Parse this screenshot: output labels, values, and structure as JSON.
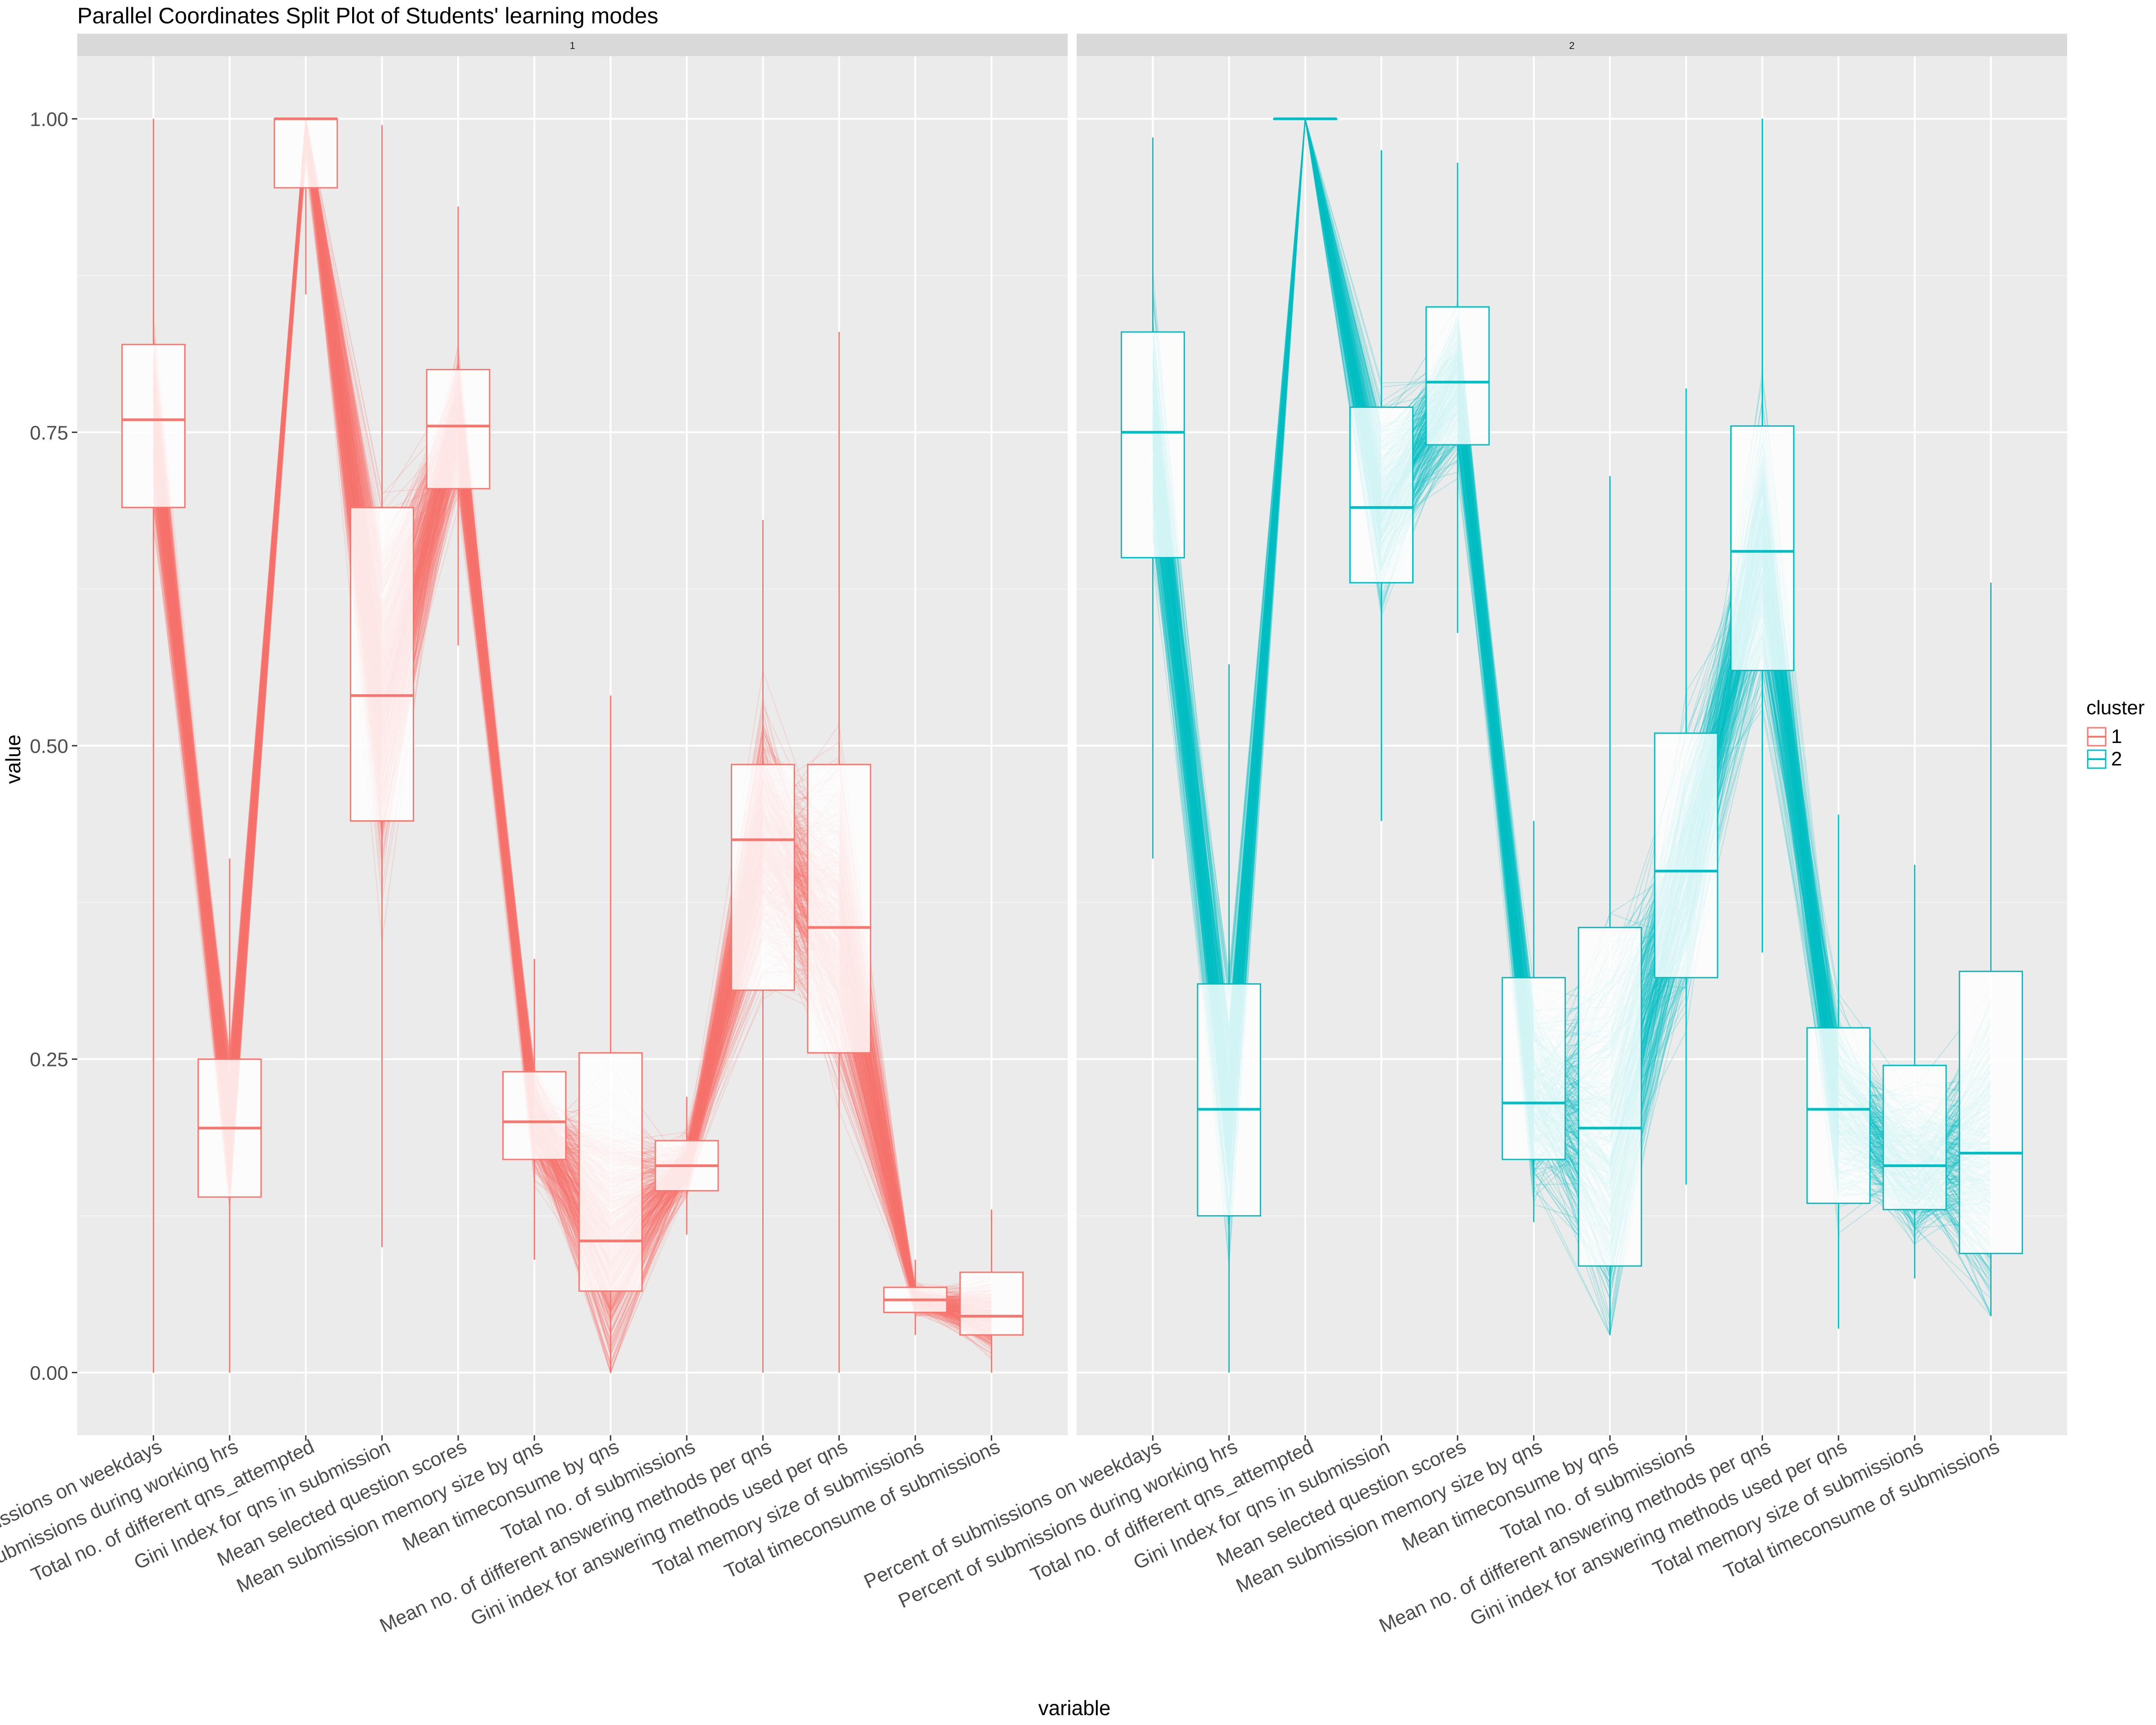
{
  "chart_data": {
    "type": "parallel-coordinates-split",
    "title": "Parallel Coordinates Split Plot of Students' learning modes",
    "xlabel": "variable",
    "ylabel": "value",
    "ylim": [
      -0.05,
      1.05
    ],
    "yticks": [
      0.0,
      0.25,
      0.5,
      0.75,
      1.0
    ],
    "ytick_labels": [
      "0.00",
      "0.25",
      "0.50",
      "0.75",
      "1.00"
    ],
    "grid": true,
    "legend": {
      "title": "cluster",
      "placement": "right",
      "entries": [
        "1",
        "2"
      ]
    },
    "variables": [
      "Percent of submissions on weekdays",
      "Percent of submissions during working hrs",
      "Total no. of different qns_attempted",
      "Gini Index for qns in submission",
      "Mean selected question scores",
      "Mean submission memory size by qns",
      "Mean timeconsume by qns",
      "Total no. of submissions",
      "Mean no. of different answering methods per qns",
      "Gini index for answering methods used per qns",
      "Total memory size of submissions",
      "Total timeconsume of submissions"
    ],
    "panels": [
      {
        "strip": "1",
        "color": "#F8766D",
        "boxes": [
          {
            "q1": 0.69,
            "median": 0.76,
            "q3": 0.82,
            "lower": 0.0,
            "upper": 1.0
          },
          {
            "q1": 0.14,
            "median": 0.195,
            "q3": 0.25,
            "lower": 0.0,
            "upper": 0.41
          },
          {
            "q1": 0.945,
            "median": 1.0,
            "q3": 1.0,
            "lower": 0.86,
            "upper": 1.0
          },
          {
            "q1": 0.44,
            "median": 0.54,
            "q3": 0.69,
            "lower": 0.1,
            "upper": 0.995
          },
          {
            "q1": 0.705,
            "median": 0.755,
            "q3": 0.8,
            "lower": 0.58,
            "upper": 0.93
          },
          {
            "q1": 0.17,
            "median": 0.2,
            "q3": 0.24,
            "lower": 0.09,
            "upper": 0.33
          },
          {
            "q1": 0.065,
            "median": 0.105,
            "q3": 0.255,
            "lower": 0.0,
            "upper": 0.54
          },
          {
            "q1": 0.145,
            "median": 0.165,
            "q3": 0.185,
            "lower": 0.11,
            "upper": 0.22
          },
          {
            "q1": 0.305,
            "median": 0.425,
            "q3": 0.485,
            "lower": 0.0,
            "upper": 0.68
          },
          {
            "q1": 0.255,
            "median": 0.355,
            "q3": 0.485,
            "lower": 0.0,
            "upper": 0.83
          },
          {
            "q1": 0.048,
            "median": 0.058,
            "q3": 0.068,
            "lower": 0.03,
            "upper": 0.09
          },
          {
            "q1": 0.03,
            "median": 0.045,
            "q3": 0.08,
            "lower": 0.0,
            "upper": 0.13
          }
        ]
      },
      {
        "strip": "2",
        "color": "#00BFC4",
        "boxes": [
          {
            "q1": 0.65,
            "median": 0.75,
            "q3": 0.83,
            "lower": 0.41,
            "upper": 0.985
          },
          {
            "q1": 0.125,
            "median": 0.21,
            "q3": 0.31,
            "lower": 0.0,
            "upper": 0.565
          },
          {
            "q1": 1.0,
            "median": 1.0,
            "q3": 1.0,
            "lower": 1.0,
            "upper": 1.0
          },
          {
            "q1": 0.63,
            "median": 0.69,
            "q3": 0.77,
            "lower": 0.44,
            "upper": 0.975
          },
          {
            "q1": 0.74,
            "median": 0.79,
            "q3": 0.85,
            "lower": 0.59,
            "upper": 0.965
          },
          {
            "q1": 0.17,
            "median": 0.215,
            "q3": 0.315,
            "lower": 0.12,
            "upper": 0.44
          },
          {
            "q1": 0.085,
            "median": 0.195,
            "q3": 0.355,
            "lower": 0.03,
            "upper": 0.715
          },
          {
            "q1": 0.315,
            "median": 0.4,
            "q3": 0.51,
            "lower": 0.15,
            "upper": 0.785
          },
          {
            "q1": 0.56,
            "median": 0.655,
            "q3": 0.755,
            "lower": 0.335,
            "upper": 1.0
          },
          {
            "q1": 0.135,
            "median": 0.21,
            "q3": 0.275,
            "lower": 0.035,
            "upper": 0.445
          },
          {
            "q1": 0.13,
            "median": 0.165,
            "q3": 0.245,
            "lower": 0.075,
            "upper": 0.405
          },
          {
            "q1": 0.095,
            "median": 0.175,
            "q3": 0.32,
            "lower": 0.045,
            "upper": 0.63
          }
        ]
      }
    ]
  }
}
